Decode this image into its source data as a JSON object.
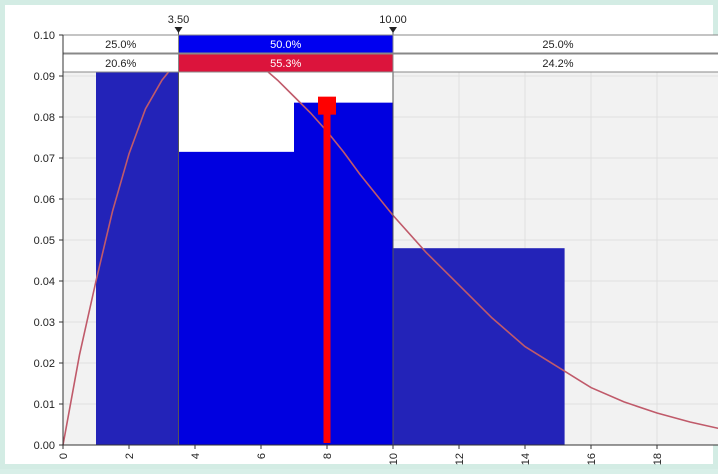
{
  "chart_data": {
    "type": "bar",
    "bins": [
      {
        "from": 1.0,
        "to": 3.5,
        "value": 0.096
      },
      {
        "from": 3.5,
        "to": 7.0,
        "value": 0.0715
      },
      {
        "from": 7.0,
        "to": 10.0,
        "value": 0.0835
      },
      {
        "from": 10.0,
        "to": 15.2,
        "value": 0.048
      }
    ],
    "curve": {
      "kind": "density",
      "points": [
        [
          0,
          0.0
        ],
        [
          0.5,
          0.022
        ],
        [
          1,
          0.04
        ],
        [
          1.5,
          0.057
        ],
        [
          2,
          0.071
        ],
        [
          2.5,
          0.082
        ],
        [
          3,
          0.089
        ],
        [
          3.5,
          0.094
        ],
        [
          4,
          0.0965
        ],
        [
          4.5,
          0.0975
        ],
        [
          5,
          0.0965
        ],
        [
          5.5,
          0.095
        ],
        [
          6,
          0.0925
        ],
        [
          6.5,
          0.089
        ],
        [
          7,
          0.085
        ],
        [
          7.5,
          0.081
        ],
        [
          8,
          0.0765
        ],
        [
          8.5,
          0.0715
        ],
        [
          9,
          0.066
        ],
        [
          9.5,
          0.061
        ],
        [
          10,
          0.056
        ],
        [
          11,
          0.047
        ],
        [
          12,
          0.039
        ],
        [
          13,
          0.031
        ],
        [
          14,
          0.024
        ],
        [
          15,
          0.019
        ],
        [
          16,
          0.014
        ],
        [
          17,
          0.0105
        ],
        [
          18,
          0.0078
        ],
        [
          19,
          0.0056
        ],
        [
          20,
          0.0038
        ]
      ]
    },
    "marker": {
      "x": 8.0,
      "value": 0.0835
    },
    "xlim": [
      0,
      20
    ],
    "ylim": [
      0,
      0.1
    ],
    "x_ticks": [
      "0",
      "2",
      "4",
      "6",
      "8",
      "10",
      "12",
      "14",
      "16",
      "18",
      "20"
    ],
    "y_ticks": [
      "0.00",
      "0.01",
      "0.02",
      "0.03",
      "0.04",
      "0.05",
      "0.06",
      "0.07",
      "0.08",
      "0.09",
      "0.10"
    ],
    "delimiters": {
      "left": {
        "x": 3.5,
        "label": "3.50"
      },
      "right": {
        "x": 10.0,
        "label": "10.00"
      }
    },
    "bands": {
      "row1": {
        "left": "25.0%",
        "middle": "50.0%",
        "right": "25.0%"
      },
      "row2": {
        "left": "20.6%",
        "middle": "55.3%",
        "right": "24.2%"
      }
    },
    "colors": {
      "bar": "#2323b8",
      "bar_highlight": "#0000e0",
      "curve": "#c05a6a",
      "marker": "#ff0000",
      "band_blue": "#0000f0",
      "band_red": "#dc143c",
      "plot_bg": "#f2f2f2",
      "grid": "#e0e0e0"
    }
  }
}
